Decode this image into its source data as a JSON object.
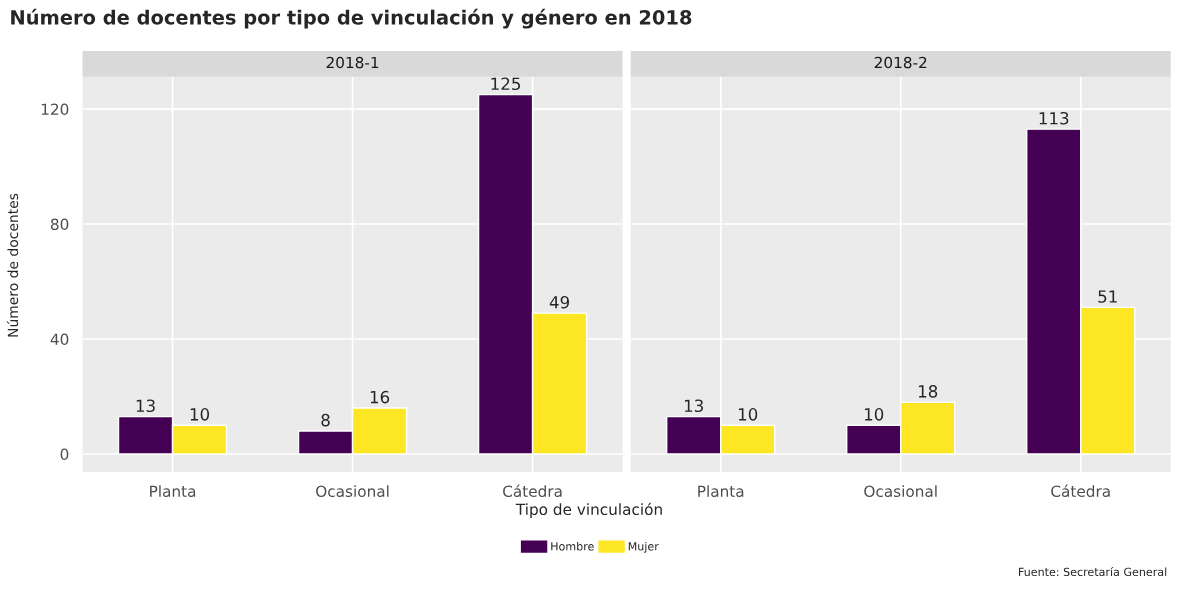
{
  "chart_data": [
    {
      "type": "bar",
      "title": "Número de docentes por tipo de vinculación y género en 2018",
      "subtitle": "2018-1",
      "xlabel": "Tipo de vinculación",
      "ylabel": "Número de docentes",
      "categories": [
        "Planta",
        "Ocasional",
        "Cátedra"
      ],
      "series": [
        {
          "name": "Hombre",
          "color": "#440154",
          "values": [
            13,
            8,
            125
          ]
        },
        {
          "name": "Mujer",
          "color": "#fde725",
          "values": [
            10,
            16,
            49
          ]
        }
      ],
      "ylim": [
        -6.25,
        131.25
      ],
      "yticks": [
        0,
        40,
        80,
        120
      ],
      "grid": true,
      "data_labels": true,
      "legend": "bottom",
      "annotations": [
        "Fuente: Secretaría General"
      ]
    },
    {
      "type": "bar",
      "subtitle": "2018-2",
      "categories": [
        "Planta",
        "Ocasional",
        "Cátedra"
      ],
      "series": [
        {
          "color": "#440154",
          "values": [
            13,
            10,
            113
          ]
        },
        {
          "color": "#fde725",
          "values": [
            10,
            18,
            51
          ]
        }
      ],
      "ylim": [
        -6.25,
        131.25
      ],
      "yticks": [
        0,
        40,
        80,
        120
      ],
      "grid": true,
      "data_labels": true,
      "tick_labels": "x"
    }
  ]
}
